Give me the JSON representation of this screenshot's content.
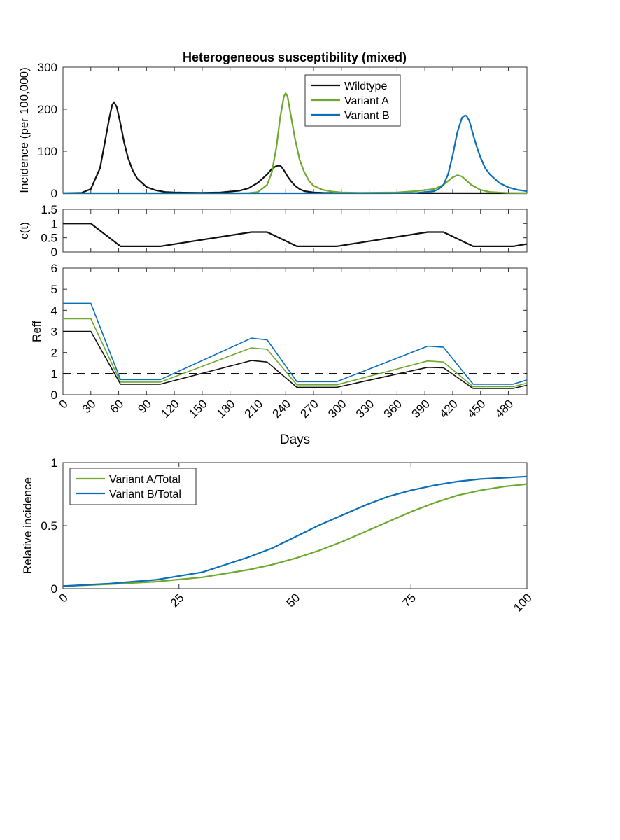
{
  "colors": {
    "wildtype": "#111111",
    "variant_a": "#6fa82f",
    "variant_b": "#0b6fb8",
    "axis": "#333333"
  },
  "chart_data": [
    {
      "id": "incidence",
      "type": "line",
      "title": "Heterogeneous susceptibility (mixed)",
      "ylabel": "Incidence (per 100,000)",
      "xlabel": "",
      "xlim": [
        0,
        500
      ],
      "ylim": [
        0,
        300
      ],
      "yticks": [
        0,
        100,
        200,
        300
      ],
      "legend": [
        "Wildtype",
        "Variant A",
        "Variant B"
      ],
      "legend_position": "top-center",
      "series": [
        {
          "name": "Wildtype",
          "color_key": "wildtype",
          "x": [
            0,
            20,
            30,
            40,
            45,
            50,
            53,
            55,
            58,
            62,
            66,
            70,
            75,
            80,
            90,
            100,
            110,
            120,
            130,
            150,
            170,
            190,
            200,
            210,
            220,
            225,
            230,
            233,
            235,
            238,
            242,
            246,
            250,
            255,
            260,
            270,
            280,
            300,
            350,
            400,
            500
          ],
          "y": [
            0,
            1,
            10,
            60,
            120,
            180,
            210,
            217,
            205,
            165,
            120,
            85,
            55,
            35,
            15,
            7,
            3,
            2,
            1.5,
            1.2,
            2,
            6,
            12,
            25,
            45,
            58,
            65,
            66,
            64,
            55,
            40,
            28,
            18,
            10,
            5,
            2,
            1,
            0.5,
            0.2,
            0.1,
            0
          ]
        },
        {
          "name": "Variant A",
          "color_key": "variant_a",
          "x": [
            0,
            190,
            200,
            210,
            220,
            225,
            230,
            234,
            238,
            240,
            242,
            246,
            250,
            255,
            260,
            265,
            270,
            280,
            290,
            300,
            320,
            360,
            380,
            400,
            410,
            420,
            425,
            430,
            435,
            440,
            450,
            460,
            480,
            500
          ],
          "y": [
            0,
            0,
            0.5,
            3,
            20,
            50,
            110,
            180,
            230,
            238,
            230,
            180,
            130,
            80,
            50,
            30,
            18,
            8,
            4,
            2,
            1,
            2,
            5,
            10,
            20,
            38,
            43,
            40,
            30,
            20,
            8,
            3,
            0.5,
            0
          ]
        },
        {
          "name": "Variant B",
          "color_key": "variant_b",
          "x": [
            0,
            350,
            380,
            400,
            405,
            410,
            415,
            420,
            425,
            430,
            433,
            435,
            438,
            442,
            446,
            450,
            455,
            460,
            470,
            480,
            490,
            500
          ],
          "y": [
            0,
            0,
            0.5,
            5,
            10,
            20,
            45,
            90,
            145,
            180,
            185,
            184,
            172,
            140,
            110,
            85,
            60,
            45,
            25,
            14,
            8,
            5
          ]
        }
      ]
    },
    {
      "id": "contact",
      "type": "line",
      "title": "",
      "ylabel": "c(t)",
      "xlim": [
        0,
        500
      ],
      "ylim": [
        0,
        1.5
      ],
      "ytick_labels": [
        "0",
        "0.5",
        "1",
        "1.5"
      ],
      "series": [
        {
          "name": "c(t)",
          "color_key": "wildtype",
          "x": [
            0,
            30,
            62,
            105,
            203,
            220,
            252,
            295,
            393,
            410,
            442,
            485,
            500
          ],
          "y": [
            1,
            1,
            0.2,
            0.2,
            0.7,
            0.7,
            0.2,
            0.2,
            0.7,
            0.7,
            0.2,
            0.2,
            0.28
          ]
        }
      ]
    },
    {
      "id": "reff",
      "type": "line",
      "title": "",
      "ylabel": "Reff",
      "xlabel": "Days",
      "xlim": [
        0,
        500
      ],
      "ylim": [
        0,
        6
      ],
      "yticks": [
        0,
        1,
        2,
        3,
        4,
        5,
        6
      ],
      "xticks": [
        0,
        30,
        60,
        90,
        120,
        150,
        180,
        210,
        240,
        270,
        300,
        330,
        360,
        390,
        420,
        450,
        480
      ],
      "reference_line": 1,
      "series": [
        {
          "name": "Wildtype",
          "color_key": "wildtype",
          "x": [
            0,
            30,
            62,
            105,
            203,
            220,
            252,
            295,
            393,
            410,
            442,
            485,
            500
          ],
          "y": [
            3,
            3,
            0.5,
            0.5,
            1.62,
            1.55,
            0.35,
            0.35,
            1.3,
            1.28,
            0.3,
            0.3,
            0.45
          ]
        },
        {
          "name": "Variant A",
          "color_key": "variant_a",
          "x": [
            0,
            30,
            62,
            105,
            203,
            220,
            252,
            295,
            393,
            410,
            442,
            485,
            500
          ],
          "y": [
            3.6,
            3.6,
            0.6,
            0.6,
            2.22,
            2.15,
            0.47,
            0.47,
            1.6,
            1.55,
            0.38,
            0.38,
            0.55
          ]
        },
        {
          "name": "Variant B",
          "color_key": "variant_b",
          "x": [
            0,
            30,
            62,
            105,
            203,
            220,
            252,
            295,
            393,
            410,
            442,
            485,
            500
          ],
          "y": [
            4.33,
            4.33,
            0.72,
            0.72,
            2.68,
            2.6,
            0.62,
            0.62,
            2.3,
            2.25,
            0.5,
            0.5,
            0.7
          ]
        }
      ]
    },
    {
      "id": "relative",
      "type": "line",
      "title": "",
      "ylabel": "Relative incidence",
      "xlabel": "",
      "xlim": [
        0,
        100
      ],
      "ylim": [
        0,
        1
      ],
      "yticks": [
        0,
        0.5,
        1
      ],
      "xticks": [
        0,
        25,
        50,
        75,
        100
      ],
      "legend": [
        "Variant A/Total",
        "Variant B/Total"
      ],
      "legend_position": "top-left",
      "series": [
        {
          "name": "Variant A/Total",
          "color_key": "variant_a",
          "x": [
            0,
            10,
            20,
            30,
            40,
            45,
            50,
            55,
            60,
            65,
            70,
            75,
            80,
            85,
            90,
            95,
            100
          ],
          "y": [
            0.02,
            0.035,
            0.055,
            0.09,
            0.15,
            0.19,
            0.24,
            0.3,
            0.37,
            0.45,
            0.53,
            0.61,
            0.68,
            0.74,
            0.78,
            0.81,
            0.83
          ]
        },
        {
          "name": "Variant B/Total",
          "color_key": "variant_b",
          "x": [
            0,
            10,
            20,
            30,
            40,
            45,
            50,
            55,
            60,
            65,
            70,
            75,
            80,
            85,
            90,
            95,
            100
          ],
          "y": [
            0.02,
            0.04,
            0.07,
            0.13,
            0.25,
            0.32,
            0.41,
            0.5,
            0.58,
            0.66,
            0.73,
            0.78,
            0.82,
            0.85,
            0.87,
            0.88,
            0.89
          ]
        }
      ]
    }
  ]
}
